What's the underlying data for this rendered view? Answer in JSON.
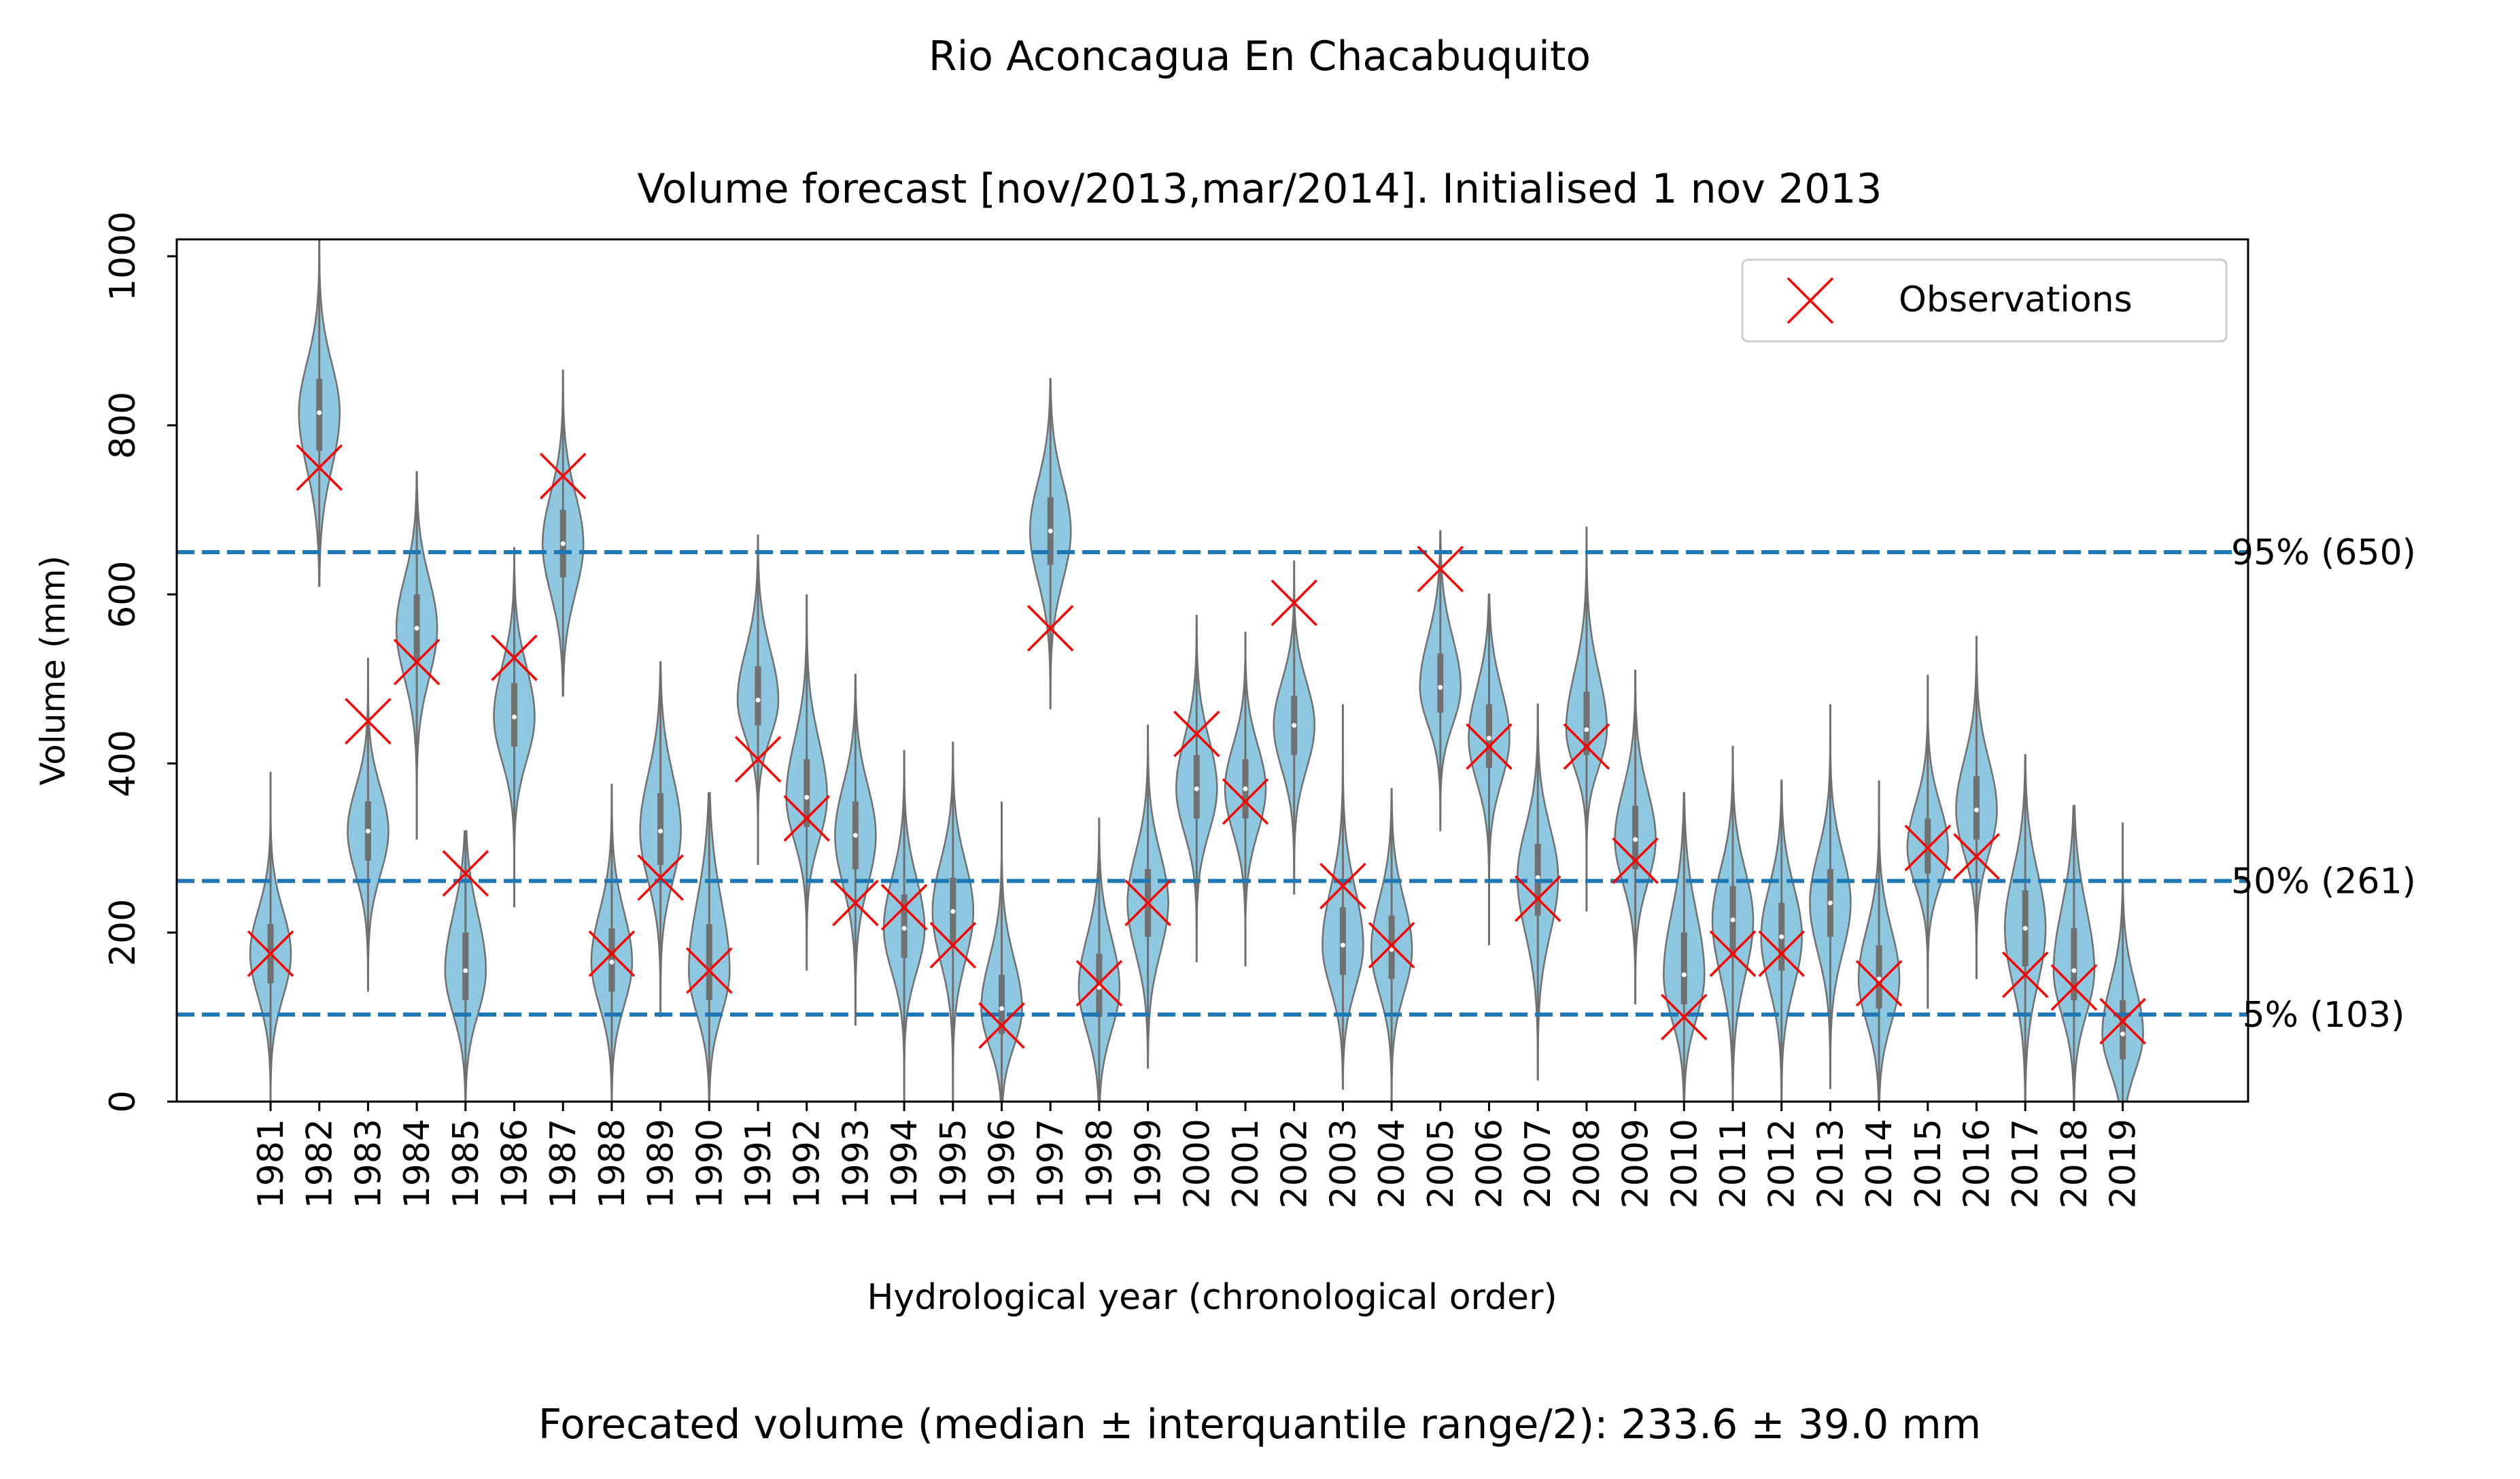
{
  "colors": {
    "violin_fill": "#8ec8e0",
    "violin_edge": "#707070",
    "observation": "#ff0000",
    "reference_line": "#1f77b4",
    "highlight_year": "#1e90ff"
  },
  "chart_data": {
    "type": "violin",
    "suptitle": "Rio Aconcagua En Chacabuquito",
    "title": "Volume forecast  [nov/2013,mar/2014]. Initialised 1 nov 2013",
    "xlabel": "Hydrological year (chronological order)",
    "ylabel": "Volume (mm)",
    "footer": "Forecated volume (median ±  interquantile range/2): 233.6 ± 39.0 mm",
    "ylim": [
      0,
      1020
    ],
    "yticks": [
      0,
      200,
      400,
      600,
      800,
      1000
    ],
    "grid": false,
    "legend": {
      "position": "top-right",
      "entries": [
        "Observations"
      ]
    },
    "highlight_category": "2013",
    "reference_lines": [
      {
        "label": "95% (650)",
        "value": 650
      },
      {
        "label": "50% (261)",
        "value": 261
      },
      {
        "label": "5% (103)",
        "value": 103
      }
    ],
    "categories": [
      "1981",
      "1982",
      "1983",
      "1984",
      "1985",
      "1986",
      "1987",
      "1988",
      "1989",
      "1990",
      "1991",
      "1992",
      "1993",
      "1994",
      "1995",
      "1996",
      "1997",
      "1998",
      "1999",
      "2000",
      "2001",
      "2002",
      "2003",
      "2004",
      "2005",
      "2006",
      "2007",
      "2008",
      "2009",
      "2010",
      "2011",
      "2012",
      "2013",
      "2014",
      "2015",
      "2016",
      "2017",
      "2018",
      "2019"
    ],
    "violins": [
      {
        "min": 0,
        "q1": 140,
        "median": 175,
        "q3": 210,
        "max": 390
      },
      {
        "min": 610,
        "q1": 770,
        "median": 815,
        "q3": 855,
        "max": 1020
      },
      {
        "min": 130,
        "q1": 285,
        "median": 320,
        "q3": 355,
        "max": 525
      },
      {
        "min": 310,
        "q1": 520,
        "median": 560,
        "q3": 600,
        "max": 745
      },
      {
        "min": 0,
        "q1": 120,
        "median": 155,
        "q3": 200,
        "max": 320
      },
      {
        "min": 230,
        "q1": 420,
        "median": 455,
        "q3": 495,
        "max": 655
      },
      {
        "min": 480,
        "q1": 620,
        "median": 660,
        "q3": 700,
        "max": 865
      },
      {
        "min": 0,
        "q1": 130,
        "median": 165,
        "q3": 205,
        "max": 375
      },
      {
        "min": 100,
        "q1": 280,
        "median": 320,
        "q3": 365,
        "max": 520
      },
      {
        "min": 0,
        "q1": 120,
        "median": 155,
        "q3": 210,
        "max": 365
      },
      {
        "min": 280,
        "q1": 445,
        "median": 475,
        "q3": 515,
        "max": 670
      },
      {
        "min": 155,
        "q1": 325,
        "median": 360,
        "q3": 405,
        "max": 600
      },
      {
        "min": 90,
        "q1": 275,
        "median": 315,
        "q3": 355,
        "max": 505
      },
      {
        "min": 0,
        "q1": 170,
        "median": 205,
        "q3": 245,
        "max": 415
      },
      {
        "min": 0,
        "q1": 185,
        "median": 225,
        "q3": 265,
        "max": 425
      },
      {
        "min": 0,
        "q1": 80,
        "median": 110,
        "q3": 150,
        "max": 355
      },
      {
        "min": 465,
        "q1": 635,
        "median": 675,
        "q3": 715,
        "max": 855
      },
      {
        "min": 0,
        "q1": 100,
        "median": 135,
        "q3": 175,
        "max": 335
      },
      {
        "min": 40,
        "q1": 195,
        "median": 235,
        "q3": 275,
        "max": 445
      },
      {
        "min": 165,
        "q1": 335,
        "median": 370,
        "q3": 410,
        "max": 575
      },
      {
        "min": 160,
        "q1": 335,
        "median": 370,
        "q3": 405,
        "max": 555
      },
      {
        "min": 245,
        "q1": 410,
        "median": 445,
        "q3": 480,
        "max": 640
      },
      {
        "min": 15,
        "q1": 150,
        "median": 185,
        "q3": 230,
        "max": 470
      },
      {
        "min": 0,
        "q1": 145,
        "median": 180,
        "q3": 220,
        "max": 370
      },
      {
        "min": 320,
        "q1": 460,
        "median": 490,
        "q3": 530,
        "max": 675
      },
      {
        "min": 185,
        "q1": 395,
        "median": 430,
        "q3": 470,
        "max": 600
      },
      {
        "min": 25,
        "q1": 220,
        "median": 265,
        "q3": 305,
        "max": 470
      },
      {
        "min": 225,
        "q1": 410,
        "median": 440,
        "q3": 485,
        "max": 680
      },
      {
        "min": 115,
        "q1": 275,
        "median": 310,
        "q3": 350,
        "max": 510
      },
      {
        "min": 0,
        "q1": 115,
        "median": 150,
        "q3": 200,
        "max": 365
      },
      {
        "min": 0,
        "q1": 170,
        "median": 215,
        "q3": 255,
        "max": 420
      },
      {
        "min": 0,
        "q1": 155,
        "median": 195,
        "q3": 235,
        "max": 380
      },
      {
        "min": 15,
        "q1": 195,
        "median": 235,
        "q3": 275,
        "max": 470
      },
      {
        "min": 0,
        "q1": 110,
        "median": 145,
        "q3": 185,
        "max": 380
      },
      {
        "min": 110,
        "q1": 270,
        "median": 300,
        "q3": 335,
        "max": 505
      },
      {
        "min": 145,
        "q1": 310,
        "median": 345,
        "q3": 385,
        "max": 550
      },
      {
        "min": 0,
        "q1": 160,
        "median": 205,
        "q3": 250,
        "max": 410
      },
      {
        "min": 0,
        "q1": 120,
        "median": 155,
        "q3": 205,
        "max": 350
      },
      {
        "min": 0,
        "q1": 50,
        "median": 80,
        "q3": 120,
        "max": 330
      }
    ],
    "observations": [
      175,
      750,
      450,
      520,
      270,
      525,
      740,
      175,
      265,
      155,
      405,
      335,
      235,
      230,
      185,
      90,
      560,
      140,
      235,
      435,
      355,
      590,
      255,
      185,
      630,
      420,
      240,
      420,
      285,
      100,
      175,
      175,
      null,
      140,
      300,
      290,
      150,
      135,
      95
    ]
  }
}
